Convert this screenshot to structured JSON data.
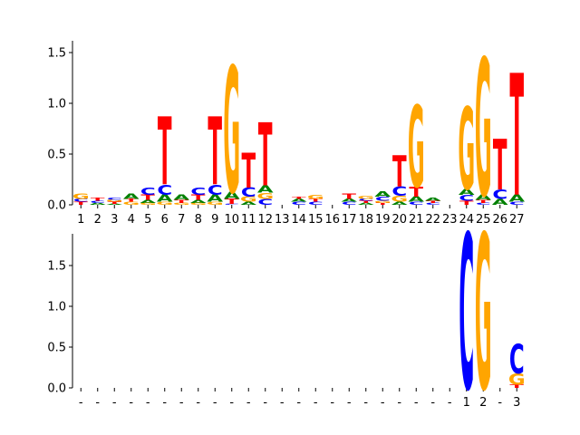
{
  "chart_data": [
    {
      "type": "sequence-logo",
      "title": "",
      "xlabel": "",
      "ylabel": "",
      "ylim": [
        0,
        1.65
      ],
      "yticks": [
        "0.0",
        "0.5",
        "1.0",
        "1.5"
      ],
      "ytick_values": [
        0.0,
        0.5,
        1.0,
        1.5
      ],
      "xtick_labels": [
        "1",
        "2",
        "3",
        "4",
        "5",
        "6",
        "7",
        "8",
        "9",
        "10",
        "11",
        "12",
        "13",
        "14",
        "15",
        "16",
        "17",
        "18",
        "19",
        "20",
        "21",
        "22",
        "23",
        "24",
        "25",
        "26",
        "27"
      ],
      "colors": {
        "A": "#008000",
        "C": "#0000ff",
        "G": "#ffa500",
        "T": "#ff0000"
      },
      "columns": [
        [
          [
            "T",
            0.03
          ],
          [
            "C",
            0.03
          ],
          [
            "G",
            0.05
          ]
        ],
        [
          [
            "A",
            0.02
          ],
          [
            "C",
            0.02
          ],
          [
            "T",
            0.03
          ]
        ],
        [
          [
            "A",
            0.01
          ],
          [
            "T",
            0.02
          ],
          [
            "G",
            0.02
          ],
          [
            "C",
            0.02
          ]
        ],
        [
          [
            "G",
            0.03
          ],
          [
            "T",
            0.03
          ],
          [
            "A",
            0.05
          ]
        ],
        [
          [
            "G",
            0.02
          ],
          [
            "A",
            0.03
          ],
          [
            "T",
            0.05
          ],
          [
            "C",
            0.07
          ]
        ],
        [
          [
            "G",
            0.03
          ],
          [
            "A",
            0.07
          ],
          [
            "C",
            0.1
          ],
          [
            "T",
            0.67
          ]
        ],
        [
          [
            "G",
            0.02
          ],
          [
            "T",
            0.03
          ],
          [
            "A",
            0.05
          ]
        ],
        [
          [
            "G",
            0.02
          ],
          [
            "A",
            0.03
          ],
          [
            "T",
            0.05
          ],
          [
            "C",
            0.07
          ]
        ],
        [
          [
            "G",
            0.03
          ],
          [
            "A",
            0.07
          ],
          [
            "C",
            0.1
          ],
          [
            "T",
            0.67
          ]
        ],
        [
          [
            "C",
            0.01
          ],
          [
            "T",
            0.05
          ],
          [
            "A",
            0.07
          ],
          [
            "G",
            1.24
          ]
        ],
        [
          [
            "A",
            0.03
          ],
          [
            "G",
            0.05
          ],
          [
            "C",
            0.09
          ],
          [
            "T",
            0.34
          ]
        ],
        [
          [
            "C",
            0.06
          ],
          [
            "G",
            0.06
          ],
          [
            "A",
            0.07
          ],
          [
            "T",
            0.62
          ]
        ],
        [],
        [
          [
            "C",
            0.03
          ],
          [
            "A",
            0.03
          ],
          [
            "T",
            0.02
          ]
        ],
        [
          [
            "C",
            0.03
          ],
          [
            "T",
            0.03
          ],
          [
            "G",
            0.04
          ]
        ],
        [],
        [
          [
            "C",
            0.03
          ],
          [
            "A",
            0.03
          ],
          [
            "T",
            0.05
          ]
        ],
        [
          [
            "A",
            0.02
          ],
          [
            "T",
            0.02
          ],
          [
            "C",
            0.02
          ],
          [
            "G",
            0.03
          ]
        ],
        [
          [
            "T",
            0.02
          ],
          [
            "G",
            0.02
          ],
          [
            "C",
            0.04
          ],
          [
            "A",
            0.05
          ]
        ],
        [
          [
            "A",
            0.03
          ],
          [
            "G",
            0.06
          ],
          [
            "C",
            0.09
          ],
          [
            "T",
            0.31
          ]
        ],
        [
          [
            "C",
            0.03
          ],
          [
            "A",
            0.05
          ],
          [
            "T",
            0.1
          ],
          [
            "G",
            0.8
          ]
        ],
        [
          [
            "C",
            0.02
          ],
          [
            "T",
            0.02
          ],
          [
            "A",
            0.03
          ]
        ],
        [],
        [
          [
            "T",
            0.04
          ],
          [
            "C",
            0.06
          ],
          [
            "A",
            0.06
          ],
          [
            "G",
            0.81
          ]
        ],
        [
          [
            "C",
            0.02
          ],
          [
            "T",
            0.03
          ],
          [
            "A",
            0.05
          ],
          [
            "G",
            1.35
          ]
        ],
        [
          [
            "A",
            0.06
          ],
          [
            "C",
            0.09
          ],
          [
            "T",
            0.5
          ]
        ],
        [
          [
            "C",
            0.03
          ],
          [
            "A",
            0.07
          ],
          [
            "T",
            1.2
          ]
        ]
      ]
    },
    {
      "type": "sequence-logo",
      "title": "",
      "xlabel": "",
      "ylabel": "",
      "ylim": [
        0,
        1.9
      ],
      "yticks": [
        "0.0",
        "0.5",
        "1.0",
        "1.5"
      ],
      "ytick_values": [
        0.0,
        0.5,
        1.0,
        1.5
      ],
      "xtick_labels": [
        "-",
        "-",
        "-",
        "-",
        "-",
        "-",
        "-",
        "-",
        "-",
        "-",
        "-",
        "-",
        "-",
        "-",
        "-",
        "-",
        "-",
        "-",
        "-",
        "-",
        "-",
        "-",
        "-",
        "1",
        "2",
        "-",
        "3"
      ],
      "colors": {
        "A": "#008000",
        "C": "#0000ff",
        "G": "#ffa500",
        "T": "#ff0000"
      },
      "columns": [
        [],
        [],
        [],
        [],
        [],
        [],
        [],
        [],
        [],
        [],
        [],
        [],
        [],
        [],
        [],
        [],
        [],
        [],
        [],
        [],
        [],
        [],
        [],
        [
          [
            "C",
            1.9
          ]
        ],
        [
          [
            "G",
            1.9
          ]
        ],
        [],
        [
          [
            "T",
            0.04
          ],
          [
            "G",
            0.14
          ],
          [
            "C",
            0.36
          ]
        ]
      ]
    }
  ]
}
